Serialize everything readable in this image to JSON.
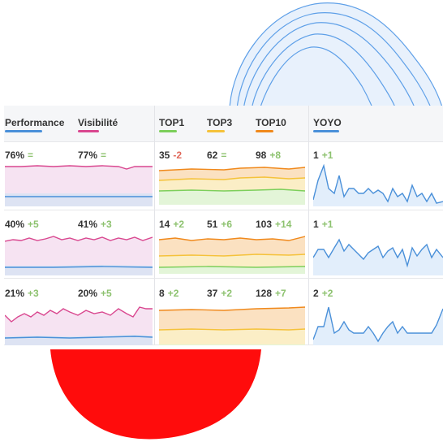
{
  "colors": {
    "performance": "#4a90d9",
    "visibilite": "#d9478f",
    "top1": "#7ccf5b",
    "top3": "#f5c23b",
    "top10": "#f0891c",
    "yoyo": "#4a90d9",
    "positive": "#8dc26f",
    "negative": "#e0685a"
  },
  "headers": {
    "performance": "Performance",
    "visibilite": "Visibilité",
    "top1": "TOP1",
    "top3": "TOP3",
    "top10": "TOP10",
    "yoyo": "YOYO"
  },
  "rows": [
    {
      "performance": {
        "value": "76%",
        "delta": "="
      },
      "visibilite": {
        "value": "77%",
        "delta": "="
      },
      "top1": {
        "value": "35",
        "delta": "-2"
      },
      "top3": {
        "value": "62",
        "delta": "="
      },
      "top10": {
        "value": "98",
        "delta": "+8"
      },
      "yoyo": {
        "value": "1",
        "delta": "+1"
      }
    },
    {
      "performance": {
        "value": "40%",
        "delta": "+5"
      },
      "visibilite": {
        "value": "41%",
        "delta": "+3"
      },
      "top1": {
        "value": "14",
        "delta": "+2"
      },
      "top3": {
        "value": "51",
        "delta": "+6"
      },
      "top10": {
        "value": "103",
        "delta": "+14"
      },
      "yoyo": {
        "value": "1",
        "delta": "+1"
      }
    },
    {
      "performance": {
        "value": "21%",
        "delta": "+3"
      },
      "visibilite": {
        "value": "20%",
        "delta": "+5"
      },
      "top1": {
        "value": "8",
        "delta": "+2"
      },
      "top3": {
        "value": "37",
        "delta": "+2"
      },
      "top10": {
        "value": "128",
        "delta": "+7"
      },
      "yoyo": {
        "value": "2",
        "delta": "+2"
      }
    }
  ]
}
